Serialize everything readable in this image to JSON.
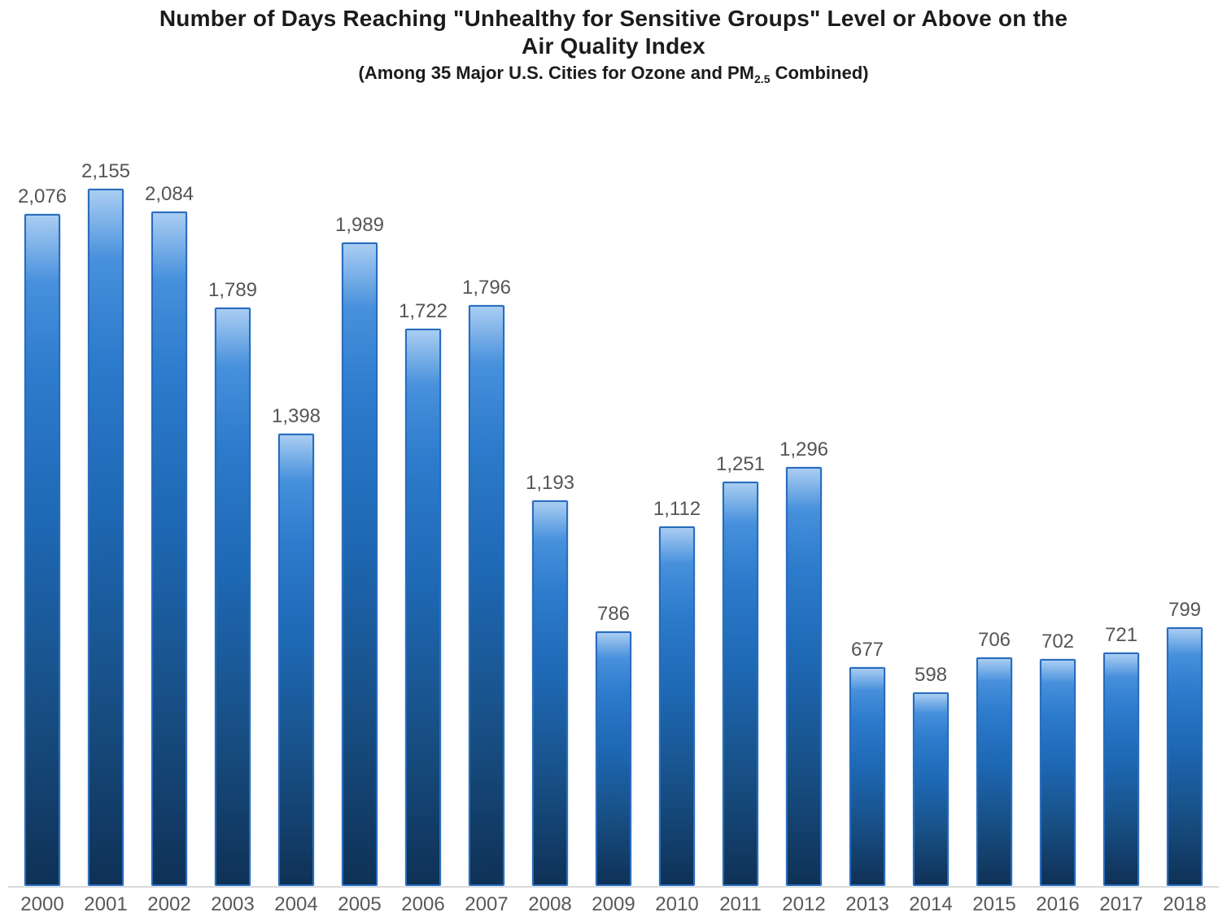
{
  "title": {
    "line1": "Number of Days Reaching \"Unhealthy for Sensitive Groups\" Level or Above on the",
    "line2": "Air Quality Index",
    "subtitle_prefix": "(Among 35 Major U.S. Cities for Ozone and PM",
    "subtitle_sub": "2.5",
    "subtitle_suffix": " Combined)"
  },
  "colors": {
    "title_color": "#1b1b1b",
    "value_label_color": "#555555",
    "axis_label_color": "#595959",
    "baseline_color": "#d9d9d9",
    "bar_top_color": "#a9cdf2",
    "bar_mid_color": "#1e68b4",
    "bar_bottom_color": "#0f3156",
    "bar_border_color": "#2a6cbd"
  },
  "chart_data": {
    "type": "bar",
    "title": "Number of Days Reaching \"Unhealthy for Sensitive Groups\" Level or Above on the Air Quality Index",
    "subtitle": "(Among 35 Major U.S. Cities for Ozone and PM2.5 Combined)",
    "categories": [
      "2000",
      "2001",
      "2002",
      "2003",
      "2004",
      "2005",
      "2006",
      "2007",
      "2008",
      "2009",
      "2010",
      "2011",
      "2012",
      "2013",
      "2014",
      "2015",
      "2016",
      "2017",
      "2018"
    ],
    "values": [
      2076,
      2155,
      2084,
      1789,
      1398,
      1989,
      1722,
      1796,
      1193,
      786,
      1112,
      1251,
      1296,
      677,
      598,
      706,
      702,
      721,
      799
    ],
    "value_labels": [
      "2,076",
      "2,155",
      "2,084",
      "1,789",
      "1,398",
      "1,989",
      "1,722",
      "1,796",
      "1,193",
      "786",
      "1,112",
      "1,251",
      "1,296",
      "677",
      "598",
      "706",
      "702",
      "721",
      "799"
    ],
    "xlabel": "",
    "ylabel": "",
    "ylim": [
      0,
      2155
    ],
    "grid": false,
    "legend": false,
    "data_label_position": "above-bar",
    "bar_color_style": "vertical gradient light blue to dark navy"
  }
}
